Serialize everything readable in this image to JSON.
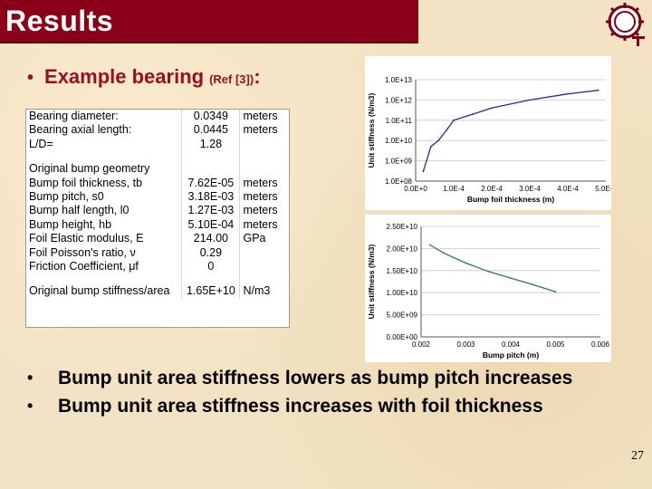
{
  "slide": {
    "title": "Results",
    "heading": {
      "bullet": "•",
      "main": "Example bearing",
      "ref": "(Ref [3])",
      "colon": ":"
    },
    "page_number": "27"
  },
  "table": {
    "rows": [
      {
        "label": "Bearing diameter:",
        "value": "0.0349",
        "unit": "meters"
      },
      {
        "label": "Bearing axial length:",
        "value": "0.0445",
        "unit": "meters"
      },
      {
        "label": "L/D=",
        "value": "1.28",
        "unit": ""
      },
      {
        "label": "",
        "value": "",
        "unit": ""
      },
      {
        "label": "Original bump geometry",
        "value": "",
        "unit": ""
      },
      {
        "label": "Bump foil thickness, tb",
        "value": "7.62E-05",
        "unit": "meters"
      },
      {
        "label": "Bump pitch, s0",
        "value": "3.18E-03",
        "unit": "meters"
      },
      {
        "label": "Bump half length, l0",
        "value": "1.27E-03",
        "unit": "meters"
      },
      {
        "label": "Bump height, hb",
        "value": "5.10E-04",
        "unit": "meters"
      },
      {
        "label": "Foil Elastic modulus, E",
        "value": "214.00",
        "unit": "GPa"
      },
      {
        "label": "Foil Poisson's ratio, ν",
        "value": "0.29",
        "unit": ""
      },
      {
        "label": "Friction Coefficient, μf",
        "value": "0",
        "unit": ""
      },
      {
        "label": "",
        "value": "",
        "unit": ""
      },
      {
        "label": "Original bump stiffness/area",
        "value": "1.65E+10",
        "unit": "N/m3"
      }
    ]
  },
  "chart_data": [
    {
      "type": "line",
      "xlabel": "Bump foil thickness (m)",
      "ylabel": "Unit stiffness (N/m3)",
      "yscale": "log",
      "xlim": [
        0,
        0.0005
      ],
      "ylim": [
        100000000,
        10000000000000
      ],
      "x_tick_labels": [
        "0.0E+0",
        "1.0E-4",
        "2.0E-4",
        "3.0E-4",
        "4.0E-4",
        "5.0E-4"
      ],
      "y_tick_labels": [
        "1.0E+08",
        "1.0E+09",
        "1.0E+10",
        "1.0E+11",
        "1.0E+12",
        "1.0E+13"
      ],
      "grid": true,
      "color": "#1f2f8f",
      "x": [
        2e-05,
        4e-05,
        6e-05,
        8e-05,
        0.0001,
        0.00015,
        0.0002,
        0.0003,
        0.0004,
        0.00048
      ],
      "y": [
        300000000,
        5000000000,
        10000000000,
        30000000000,
        100000000000,
        200000000000,
        400000000000,
        1000000000000,
        2000000000000,
        3000000000000
      ]
    },
    {
      "type": "line",
      "xlabel": "Bump pitch (m)",
      "ylabel": "Unit stiffness (N/m3)",
      "xlim": [
        0.002,
        0.006
      ],
      "ylim": [
        0,
        25000000000
      ],
      "x_tick_labels": [
        "0.002",
        "0.003",
        "0.004",
        "0.005",
        "0.006"
      ],
      "y_tick_labels": [
        "0.00E+00",
        "5.00E+09",
        "1.00E+10",
        "1.50E+10",
        "2.00E+10",
        "2.50E+10"
      ],
      "grid": true,
      "color": "#2e7d32",
      "x": [
        0.0022,
        0.0025,
        0.003,
        0.0035,
        0.004,
        0.0045,
        0.005
      ],
      "y": [
        20800000000,
        19000000000,
        16700000000,
        14800000000,
        13300000000,
        11800000000,
        10200000000
      ]
    }
  ],
  "bullets": [
    {
      "dot": "•",
      "text": "Bump unit area stiffness lowers as bump pitch increases"
    },
    {
      "dot": "•",
      "text": "Bump unit area stiffness increases with foil thickness"
    }
  ],
  "colors": {
    "title_bar": "#8b0019",
    "heading": "#9a0e22"
  }
}
